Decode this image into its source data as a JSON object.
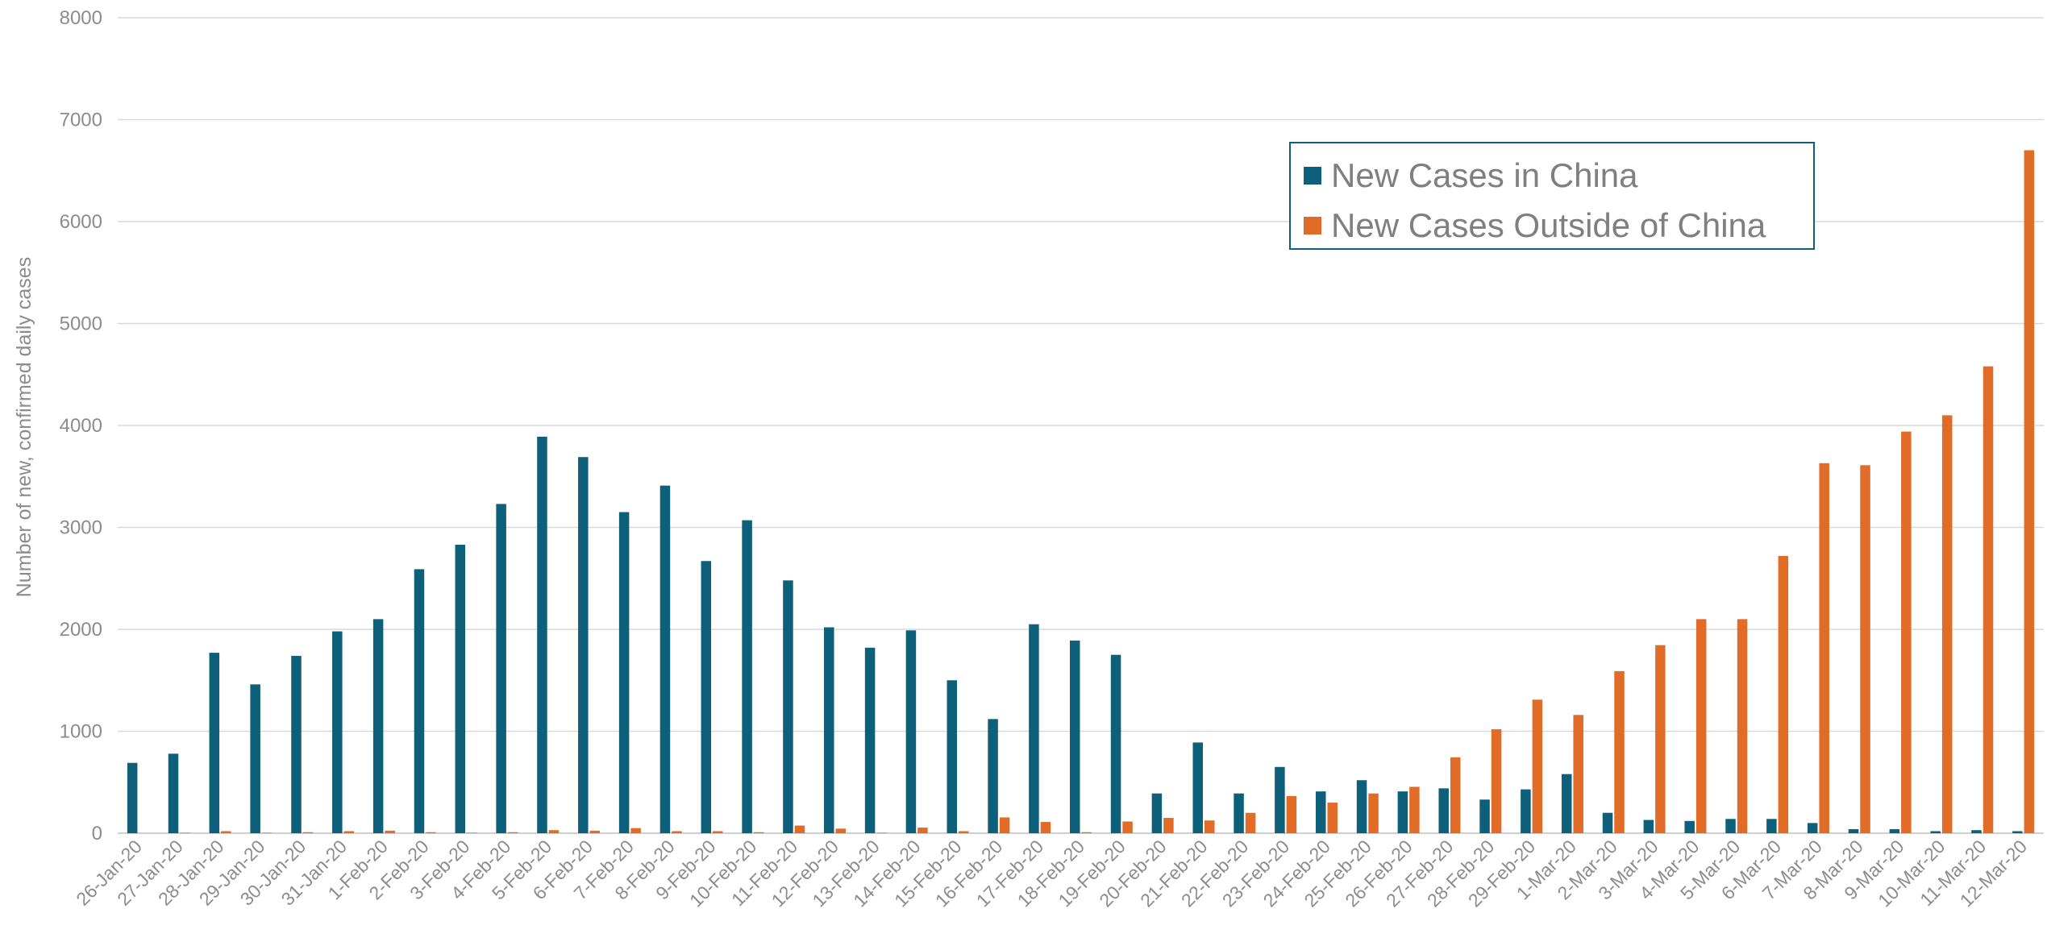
{
  "chart_data": {
    "type": "bar",
    "title": "",
    "xlabel": "",
    "ylabel": "Number of new, confirmed daily cases",
    "ylim": [
      0,
      8000
    ],
    "yticks": [
      0,
      1000,
      2000,
      3000,
      4000,
      5000,
      6000,
      7000,
      8000
    ],
    "grid": true,
    "legend_position": "top-right",
    "categories": [
      "26-Jan-20",
      "27-Jan-20",
      "28-Jan-20",
      "29-Jan-20",
      "30-Jan-20",
      "31-Jan-20",
      "1-Feb-20",
      "2-Feb-20",
      "3-Feb-20",
      "4-Feb-20",
      "5-Feb-20",
      "6-Feb-20",
      "7-Feb-20",
      "8-Feb-20",
      "9-Feb-20",
      "10-Feb-20",
      "11-Feb-20",
      "12-Feb-20",
      "13-Feb-20",
      "14-Feb-20",
      "15-Feb-20",
      "16-Feb-20",
      "17-Feb-20",
      "18-Feb-20",
      "19-Feb-20",
      "20-Feb-20",
      "21-Feb-20",
      "22-Feb-20",
      "23-Feb-20",
      "24-Feb-20",
      "25-Feb-20",
      "26-Feb-20",
      "27-Feb-20",
      "28-Feb-20",
      "29-Feb-20",
      "1-Mar-20",
      "2-Mar-20",
      "3-Mar-20",
      "4-Mar-20",
      "5-Mar-20",
      "6-Mar-20",
      "7-Mar-20",
      "8-Mar-20",
      "9-Mar-20",
      "10-Mar-20",
      "11-Mar-20",
      "12-Mar-20"
    ],
    "series": [
      {
        "name": "New Cases in China",
        "color": "#0e5f7a",
        "values": [
          690,
          780,
          1770,
          1460,
          1740,
          1980,
          2100,
          2590,
          2830,
          3230,
          3890,
          3690,
          3150,
          3410,
          2670,
          3070,
          2480,
          2020,
          1820,
          1990,
          1500,
          1120,
          2050,
          1890,
          1750,
          390,
          890,
          390,
          650,
          410,
          520,
          410,
          440,
          330,
          430,
          580,
          200,
          130,
          120,
          140,
          140,
          100,
          40,
          40,
          20,
          30,
          20
        ]
      },
      {
        "name": "New Cases Outside of China",
        "color": "#e06c27",
        "values": [
          0,
          5,
          20,
          5,
          10,
          20,
          25,
          10,
          5,
          10,
          30,
          25,
          50,
          20,
          20,
          10,
          75,
          45,
          5,
          55,
          20,
          155,
          110,
          10,
          115,
          150,
          125,
          200,
          365,
          300,
          390,
          455,
          745,
          1020,
          1310,
          1160,
          1590,
          1845,
          2100,
          2100,
          2720,
          3630,
          3610,
          3940,
          4100,
          4580,
          6700
        ]
      }
    ]
  }
}
